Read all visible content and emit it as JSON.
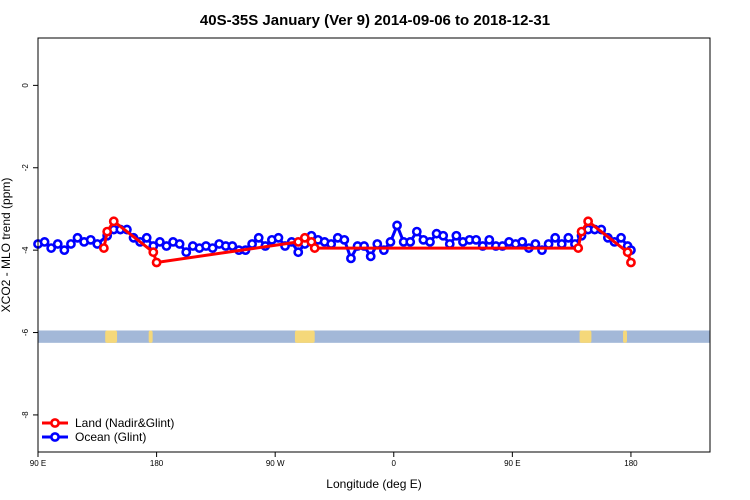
{
  "chart_data": {
    "type": "scatter",
    "title": "40S-35S January (Ver 9)   2014-09-06 to 2018-12-31",
    "xlabel": "Longitude (deg E)",
    "ylabel": "XCO2 - MLO trend (ppm)",
    "xlim": [
      90,
      600
    ],
    "ylim": [
      -8.9,
      1.15
    ],
    "xticks": [
      {
        "value": 90,
        "label": "90 E"
      },
      {
        "value": 180,
        "label": "180"
      },
      {
        "value": 270,
        "label": "90 W"
      },
      {
        "value": 360,
        "label": "0"
      },
      {
        "value": 450,
        "label": "90 E"
      },
      {
        "value": 540,
        "label": "180"
      }
    ],
    "yticks": [
      {
        "value": 0,
        "label": "0"
      },
      {
        "value": -2,
        "label": "-2"
      },
      {
        "value": -4,
        "label": "-4"
      },
      {
        "value": -6,
        "label": "-6"
      },
      {
        "value": -8,
        "label": "-8"
      }
    ],
    "legend": {
      "position": "bottom-left"
    },
    "map_strip": {
      "y_center": -6.0,
      "y_range": [
        -6.25,
        -5.95
      ],
      "ocean_color": "#a3b8d8",
      "land_color": "#f5d87a",
      "land_segments": [
        {
          "lon_start": 141,
          "lon_end": 150
        },
        {
          "lon_start": 174,
          "lon_end": 177
        },
        {
          "lon_start": 285,
          "lon_end": 300
        },
        {
          "lon_start": 501,
          "lon_end": 510
        },
        {
          "lon_start": 534,
          "lon_end": 537
        }
      ]
    },
    "series": [
      {
        "name": "Land (Nadir&Glint)",
        "color": "#ff0000",
        "points": [
          {
            "x": 140,
            "y": -3.95
          },
          {
            "x": 142.5,
            "y": -3.55
          },
          {
            "x": 147.5,
            "y": -3.3
          },
          {
            "x": 177.5,
            "y": -4.05
          },
          {
            "x": 180,
            "y": -4.3
          },
          {
            "x": 287.5,
            "y": -3.8
          },
          {
            "x": 292.5,
            "y": -3.7
          },
          {
            "x": 297.5,
            "y": -3.8
          },
          {
            "x": 300,
            "y": -3.95
          },
          {
            "x": 500,
            "y": -3.95
          },
          {
            "x": 502.5,
            "y": -3.55
          },
          {
            "x": 507.5,
            "y": -3.3
          },
          {
            "x": 537.5,
            "y": -4.05
          },
          {
            "x": 540,
            "y": -4.3
          }
        ]
      },
      {
        "name": "Ocean (Glint)",
        "color": "#0000ff",
        "points": [
          {
            "x": 90,
            "y": -3.85
          },
          {
            "x": 95,
            "y": -3.8
          },
          {
            "x": 100,
            "y": -3.95
          },
          {
            "x": 105,
            "y": -3.85
          },
          {
            "x": 110,
            "y": -4.0
          },
          {
            "x": 115,
            "y": -3.85
          },
          {
            "x": 120,
            "y": -3.7
          },
          {
            "x": 125,
            "y": -3.8
          },
          {
            "x": 130,
            "y": -3.75
          },
          {
            "x": 135,
            "y": -3.85
          },
          {
            "x": 142.5,
            "y": -3.65
          },
          {
            "x": 147.5,
            "y": -3.5
          },
          {
            "x": 152.5,
            "y": -3.5
          },
          {
            "x": 157.5,
            "y": -3.5
          },
          {
            "x": 162.5,
            "y": -3.7
          },
          {
            "x": 167.5,
            "y": -3.8
          },
          {
            "x": 172.5,
            "y": -3.7
          },
          {
            "x": 177.5,
            "y": -3.9
          },
          {
            "x": 182.5,
            "y": -3.8
          },
          {
            "x": 187.5,
            "y": -3.9
          },
          {
            "x": 192.5,
            "y": -3.8
          },
          {
            "x": 197.5,
            "y": -3.85
          },
          {
            "x": 202.5,
            "y": -4.05
          },
          {
            "x": 207.5,
            "y": -3.9
          },
          {
            "x": 212.5,
            "y": -3.95
          },
          {
            "x": 217.5,
            "y": -3.9
          },
          {
            "x": 222.5,
            "y": -3.95
          },
          {
            "x": 227.5,
            "y": -3.85
          },
          {
            "x": 232.5,
            "y": -3.9
          },
          {
            "x": 237.5,
            "y": -3.9
          },
          {
            "x": 242.5,
            "y": -4.0
          },
          {
            "x": 247.5,
            "y": -4.0
          },
          {
            "x": 252.5,
            "y": -3.85
          },
          {
            "x": 257.5,
            "y": -3.7
          },
          {
            "x": 262.5,
            "y": -3.9
          },
          {
            "x": 267.5,
            "y": -3.75
          },
          {
            "x": 272.5,
            "y": -3.7
          },
          {
            "x": 277.5,
            "y": -3.9
          },
          {
            "x": 282.5,
            "y": -3.8
          },
          {
            "x": 287.5,
            "y": -4.05
          },
          {
            "x": 292.5,
            "y": -3.85
          },
          {
            "x": 297.5,
            "y": -3.65
          },
          {
            "x": 302.5,
            "y": -3.75
          },
          {
            "x": 307.5,
            "y": -3.8
          },
          {
            "x": 312.5,
            "y": -3.85
          },
          {
            "x": 317.5,
            "y": -3.7
          },
          {
            "x": 322.5,
            "y": -3.75
          },
          {
            "x": 327.5,
            "y": -4.2
          },
          {
            "x": 332.5,
            "y": -3.9
          },
          {
            "x": 337.5,
            "y": -3.9
          },
          {
            "x": 342.5,
            "y": -4.15
          },
          {
            "x": 347.5,
            "y": -3.85
          },
          {
            "x": 352.5,
            "y": -4.0
          },
          {
            "x": 357.5,
            "y": -3.8
          },
          {
            "x": 362.5,
            "y": -3.4
          },
          {
            "x": 367.5,
            "y": -3.8
          },
          {
            "x": 372.5,
            "y": -3.8
          },
          {
            "x": 377.5,
            "y": -3.55
          },
          {
            "x": 382.5,
            "y": -3.75
          },
          {
            "x": 387.5,
            "y": -3.8
          },
          {
            "x": 392.5,
            "y": -3.6
          },
          {
            "x": 397.5,
            "y": -3.65
          },
          {
            "x": 402.5,
            "y": -3.85
          },
          {
            "x": 407.5,
            "y": -3.65
          },
          {
            "x": 412.5,
            "y": -3.8
          },
          {
            "x": 417.5,
            "y": -3.75
          },
          {
            "x": 422.5,
            "y": -3.75
          },
          {
            "x": 427.5,
            "y": -3.9
          },
          {
            "x": 432.5,
            "y": -3.75
          },
          {
            "x": 437.5,
            "y": -3.9
          },
          {
            "x": 442.5,
            "y": -3.9
          },
          {
            "x": 447.5,
            "y": -3.8
          },
          {
            "x": 452.5,
            "y": -3.85
          },
          {
            "x": 457.5,
            "y": -3.8
          },
          {
            "x": 462.5,
            "y": -3.95
          },
          {
            "x": 467.5,
            "y": -3.85
          },
          {
            "x": 472.5,
            "y": -4.0
          },
          {
            "x": 477.5,
            "y": -3.85
          },
          {
            "x": 482.5,
            "y": -3.7
          },
          {
            "x": 487.5,
            "y": -3.85
          },
          {
            "x": 492.5,
            "y": -3.7
          },
          {
            "x": 497.5,
            "y": -3.85
          },
          {
            "x": 502.5,
            "y": -3.65
          },
          {
            "x": 507.5,
            "y": -3.5
          },
          {
            "x": 512.5,
            "y": -3.5
          },
          {
            "x": 517.5,
            "y": -3.5
          },
          {
            "x": 522.5,
            "y": -3.7
          },
          {
            "x": 527.5,
            "y": -3.8
          },
          {
            "x": 532.5,
            "y": -3.7
          },
          {
            "x": 537.5,
            "y": -3.9
          },
          {
            "x": 540,
            "y": -4.0
          }
        ]
      }
    ]
  }
}
